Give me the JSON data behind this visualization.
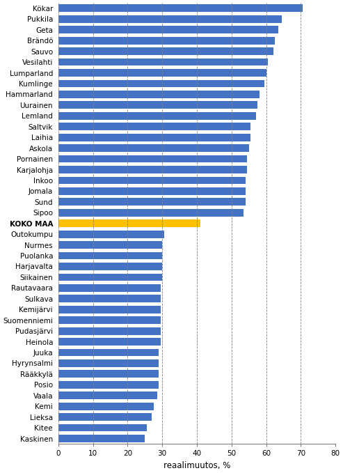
{
  "categories": [
    "Kökar",
    "Pukkila",
    "Geta",
    "Brändö",
    "Sauvo",
    "Vesilahti",
    "Lumparland",
    "Kumlinge",
    "Hammarland",
    "Uurainen",
    "Lemland",
    "Saltvik",
    "Laihia",
    "Askola",
    "Pornainen",
    "Karjalohja",
    "Inkoo",
    "Jomala",
    "Sund",
    "Sipoo",
    "KOKO MAA",
    "Outokumpu",
    "Nurmes",
    "Puolanka",
    "Harjavalta",
    "Siikainen",
    "Rautavaara",
    "Sulkava",
    "Kemijärvi",
    "Suomenniemi",
    "Pudasjärvi",
    "Heinola",
    "Juuka",
    "Hyrynsalmi",
    "Rääkkylä",
    "Posio",
    "Vaala",
    "Kemi",
    "Lieksa",
    "Kitee",
    "Kaskinen"
  ],
  "values": [
    70.5,
    64.5,
    63.5,
    62.5,
    62.0,
    60.5,
    60.0,
    59.5,
    58.0,
    57.5,
    57.0,
    55.5,
    55.5,
    55.0,
    54.5,
    54.5,
    54.0,
    54.0,
    54.0,
    53.5,
    41.0,
    30.5,
    30.0,
    30.0,
    30.0,
    30.0,
    29.5,
    29.5,
    29.5,
    29.5,
    29.5,
    29.5,
    29.0,
    29.0,
    29.0,
    29.0,
    28.5,
    27.5,
    27.0,
    25.5,
    25.0
  ],
  "bar_color_blue": "#4472C4",
  "bar_color_koko": "#FFC000",
  "koko_maa_label": "KOKO MAA",
  "xlabel": "reaalimuutos, %",
  "xlim": [
    0,
    80
  ],
  "xticks": [
    0,
    10,
    20,
    30,
    40,
    50,
    60,
    70,
    80
  ],
  "grid_color": "#7F7F7F",
  "background_color": "#FFFFFF",
  "tick_fontsize": 7.5,
  "xlabel_fontsize": 8.5,
  "bar_height": 0.7
}
